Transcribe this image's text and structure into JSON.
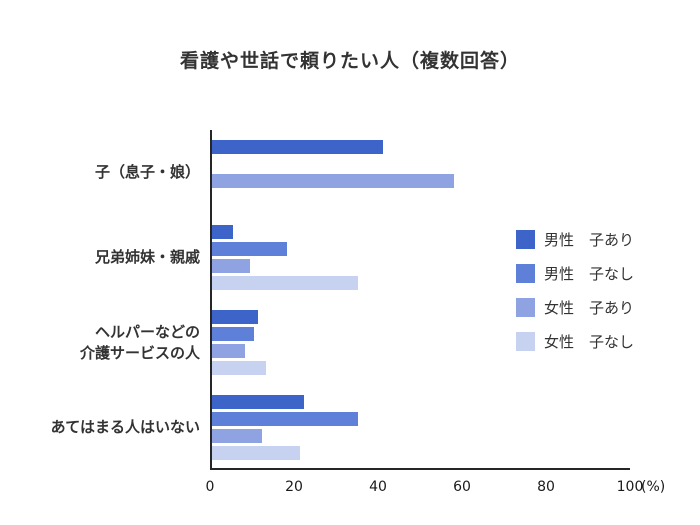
{
  "title": "看護や世話で頼りたい人（複数回答）",
  "chart_data": {
    "type": "bar",
    "orientation": "horizontal",
    "title": "看護や世話で頼りたい人（複数回答）",
    "categories": [
      "子（息子・娘）",
      "兄弟姉妹・親戚",
      "ヘルパーなどの\n介護サービスの人",
      "あてはまる人はいない"
    ],
    "series": [
      {
        "name": "男性　子あり",
        "color": "#3d64c9",
        "values": [
          41,
          5,
          11,
          22
        ]
      },
      {
        "name": "男性　子なし",
        "color": "#5f80d8",
        "values": [
          null,
          18,
          10,
          35
        ]
      },
      {
        "name": "女性　子あり",
        "color": "#8fa3e3",
        "values": [
          58,
          9,
          8,
          12
        ]
      },
      {
        "name": "女性　子なし",
        "color": "#c7d2f0",
        "values": [
          null,
          35,
          13,
          21
        ]
      }
    ],
    "xlim": [
      0,
      100
    ],
    "x_ticks": [
      0,
      20,
      40,
      60,
      80,
      100
    ],
    "x_unit": "(%)",
    "xlabel": "",
    "ylabel": "",
    "grid": false,
    "legend_position": "right"
  }
}
